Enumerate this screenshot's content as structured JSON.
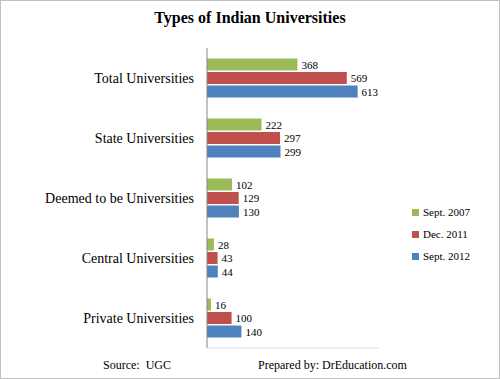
{
  "chart_data": {
    "type": "bar",
    "title": "Types of Indian Universities",
    "orientation": "horizontal",
    "categories": [
      "Total Universities",
      "State Universities",
      "Deemed to be Universities",
      "Central Universities",
      "Private Universities"
    ],
    "series": [
      {
        "name": "Sept. 2007",
        "color": "#9bbb59",
        "values": [
          368,
          222,
          102,
          28,
          16
        ]
      },
      {
        "name": "Dec. 2011",
        "color": "#c0504d",
        "values": [
          569,
          297,
          129,
          43,
          100
        ]
      },
      {
        "name": "Sept. 2012",
        "color": "#4f81bd",
        "values": [
          613,
          299,
          130,
          44,
          140
        ]
      }
    ],
    "xlim": [
      0,
      700
    ],
    "data_labels": true,
    "tick_labels": "y",
    "legend": "right",
    "annotations": [
      "Source:  UGC",
      "Prepared by: DrEducation.com"
    ]
  }
}
